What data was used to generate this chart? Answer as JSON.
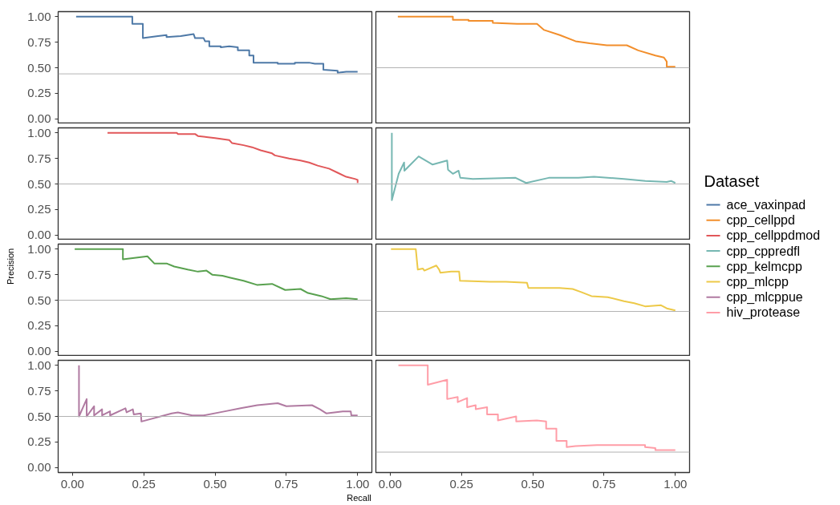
{
  "chart_data": [
    {
      "type": "line",
      "legend_title": "Dataset",
      "legend": "right",
      "tick_labels": "y",
      "xlim": [
        -0.05,
        1.05
      ],
      "ylim": [
        -0.05,
        1.05
      ],
      "yticks": [
        {
          "value": 0,
          "label": "0.00"
        },
        {
          "value": 0.25,
          "label": "0.25"
        },
        {
          "value": 0.5,
          "label": "0.50"
        },
        {
          "value": 0.75,
          "label": "0.75"
        },
        {
          "value": 1,
          "label": "1.00"
        }
      ],
      "ref_lines": [
        {
          "axis": "y",
          "value": 0.44,
          "color": "#b3b3b3"
        }
      ],
      "series": [
        {
          "name": "ace_vaxinpad",
          "color": "#4e79a7",
          "x": [
            0.013,
            0.21,
            0.21,
            0.247,
            0.247,
            0.3,
            0.33,
            0.33,
            0.38,
            0.425,
            0.43,
            0.46,
            0.465,
            0.48,
            0.48,
            0.52,
            0.52,
            0.55,
            0.58,
            0.58,
            0.62,
            0.62,
            0.635,
            0.635,
            0.72,
            0.72,
            0.78,
            0.78,
            0.83,
            0.85,
            0.88,
            0.88,
            0.93,
            0.93,
            0.96,
            1.0
          ],
          "values": [
            1,
            1,
            0.93,
            0.93,
            0.79,
            0.81,
            0.82,
            0.8,
            0.81,
            0.83,
            0.79,
            0.79,
            0.76,
            0.76,
            0.71,
            0.71,
            0.7,
            0.71,
            0.7,
            0.67,
            0.67,
            0.62,
            0.62,
            0.55,
            0.55,
            0.54,
            0.54,
            0.55,
            0.55,
            0.54,
            0.54,
            0.48,
            0.47,
            0.45,
            0.46,
            0.46
          ]
        }
      ]
    },
    {
      "type": "line",
      "legend": "right",
      "tick_labels": false,
      "xlim": [
        -0.05,
        1.05
      ],
      "ylim": [
        -0.05,
        1.05
      ],
      "ref_lines": [
        {
          "axis": "y",
          "value": 0.5,
          "color": "#b3b3b3"
        }
      ],
      "series": [
        {
          "name": "cpp_cellppd",
          "color": "#f28e2b",
          "x": [
            0.027,
            0.22,
            0.22,
            0.275,
            0.275,
            0.36,
            0.36,
            0.445,
            0.445,
            0.515,
            0.54,
            0.595,
            0.65,
            0.7,
            0.76,
            0.83,
            0.87,
            0.93,
            0.96,
            0.97,
            0.97,
            1.0
          ],
          "values": [
            1,
            1,
            0.97,
            0.97,
            0.96,
            0.96,
            0.94,
            0.93,
            0.93,
            0.93,
            0.87,
            0.82,
            0.76,
            0.74,
            0.72,
            0.72,
            0.67,
            0.62,
            0.6,
            0.56,
            0.51,
            0.51
          ]
        }
      ]
    },
    {
      "type": "line",
      "legend": "right",
      "tick_labels": "y",
      "xlim": [
        -0.05,
        1.05
      ],
      "ylim": [
        -0.05,
        1.05
      ],
      "yticks": [
        {
          "value": 0,
          "label": "0.00"
        },
        {
          "value": 0.25,
          "label": "0.25"
        },
        {
          "value": 0.5,
          "label": "0.50"
        },
        {
          "value": 0.75,
          "label": "0.75"
        },
        {
          "value": 1,
          "label": "1.00"
        }
      ],
      "ref_lines": [
        {
          "axis": "y",
          "value": 0.5,
          "color": "#b3b3b3"
        }
      ],
      "series": [
        {
          "name": "cpp_cellppdmod",
          "color": "#e15759",
          "x": [
            0.123,
            0.366,
            0.37,
            0.43,
            0.44,
            0.47,
            0.5,
            0.55,
            0.56,
            0.6,
            0.63,
            0.66,
            0.7,
            0.71,
            0.76,
            0.8,
            0.83,
            0.86,
            0.9,
            0.93,
            0.96,
            0.99,
            1.0,
            1.0
          ],
          "values": [
            1,
            1,
            0.99,
            0.99,
            0.97,
            0.96,
            0.95,
            0.93,
            0.9,
            0.88,
            0.86,
            0.83,
            0.8,
            0.78,
            0.75,
            0.73,
            0.71,
            0.68,
            0.65,
            0.61,
            0.57,
            0.55,
            0.54,
            0.51
          ]
        }
      ]
    },
    {
      "type": "line",
      "legend": "right",
      "tick_labels": false,
      "xlim": [
        -0.05,
        1.05
      ],
      "ylim": [
        -0.05,
        1.05
      ],
      "ref_lines": [
        {
          "axis": "y",
          "value": 0.5,
          "color": "#b3b3b3"
        }
      ],
      "series": [
        {
          "name": "cpp_cppredfl",
          "color": "#76b7b2",
          "x": [
            0.006,
            0.006,
            0.03,
            0.049,
            0.05,
            0.1,
            0.149,
            0.2,
            0.203,
            0.22,
            0.24,
            0.246,
            0.29,
            0.44,
            0.477,
            0.556,
            0.66,
            0.715,
            0.82,
            0.895,
            0.97,
            0.985,
            1.0
          ],
          "values": [
            1,
            0.34,
            0.6,
            0.71,
            0.63,
            0.77,
            0.69,
            0.73,
            0.64,
            0.6,
            0.63,
            0.56,
            0.55,
            0.56,
            0.51,
            0.56,
            0.56,
            0.57,
            0.55,
            0.53,
            0.52,
            0.53,
            0.51
          ]
        }
      ]
    },
    {
      "type": "line",
      "ylabel": "Precision",
      "legend": "right",
      "tick_labels": "y",
      "xlim": [
        -0.05,
        1.05
      ],
      "ylim": [
        -0.05,
        1.05
      ],
      "yticks": [
        {
          "value": 0,
          "label": "0.00"
        },
        {
          "value": 0.25,
          "label": "0.25"
        },
        {
          "value": 0.5,
          "label": "0.50"
        },
        {
          "value": 0.75,
          "label": "0.75"
        },
        {
          "value": 1,
          "label": "1.00"
        }
      ],
      "ref_lines": [
        {
          "axis": "y",
          "value": 0.5,
          "color": "#b3b3b3"
        }
      ],
      "series": [
        {
          "name": "cpp_kelmcpp",
          "color": "#59a14f",
          "x": [
            0.008,
            0.177,
            0.177,
            0.263,
            0.287,
            0.33,
            0.357,
            0.404,
            0.44,
            0.47,
            0.49,
            0.526,
            0.554,
            0.6,
            0.647,
            0.7,
            0.746,
            0.8,
            0.826,
            0.873,
            0.905,
            0.96,
            1.0
          ],
          "values": [
            1,
            1,
            0.9,
            0.93,
            0.86,
            0.86,
            0.83,
            0.8,
            0.78,
            0.79,
            0.75,
            0.74,
            0.72,
            0.69,
            0.65,
            0.66,
            0.6,
            0.61,
            0.57,
            0.54,
            0.51,
            0.52,
            0.51
          ]
        }
      ]
    },
    {
      "type": "line",
      "legend": "right",
      "tick_labels": false,
      "xlim": [
        -0.05,
        1.05
      ],
      "ylim": [
        -0.05,
        1.05
      ],
      "ref_lines": [
        {
          "axis": "y",
          "value": 0.39,
          "color": "#b3b3b3"
        }
      ],
      "series": [
        {
          "name": "cpp_mlcpp",
          "color": "#edc948",
          "x": [
            0.003,
            0.09,
            0.097,
            0.115,
            0.12,
            0.162,
            0.172,
            0.176,
            0.214,
            0.242,
            0.245,
            0.35,
            0.406,
            0.48,
            0.485,
            0.594,
            0.64,
            0.67,
            0.706,
            0.763,
            0.82,
            0.856,
            0.894,
            0.95,
            0.97,
            1.0
          ],
          "values": [
            1,
            1,
            0.8,
            0.81,
            0.79,
            0.84,
            0.8,
            0.77,
            0.78,
            0.78,
            0.69,
            0.68,
            0.68,
            0.67,
            0.62,
            0.62,
            0.61,
            0.58,
            0.54,
            0.53,
            0.49,
            0.47,
            0.44,
            0.45,
            0.42,
            0.4
          ]
        }
      ]
    },
    {
      "type": "line",
      "xlabel": "Recall",
      "legend": "right",
      "xlim": [
        -0.05,
        1.05
      ],
      "ylim": [
        -0.05,
        1.05
      ],
      "xticks": [
        {
          "value": 0,
          "label": "0.00"
        },
        {
          "value": 0.25,
          "label": "0.25"
        },
        {
          "value": 0.5,
          "label": "0.50"
        },
        {
          "value": 0.75,
          "label": "0.75"
        },
        {
          "value": 1,
          "label": "1.00"
        }
      ],
      "yticks": [
        {
          "value": 0,
          "label": "0.00"
        },
        {
          "value": 0.25,
          "label": "0.25"
        },
        {
          "value": 0.5,
          "label": "0.50"
        },
        {
          "value": 0.75,
          "label": "0.75"
        },
        {
          "value": 1,
          "label": "1.00"
        }
      ],
      "ref_lines": [
        {
          "axis": "y",
          "value": 0.5,
          "color": "#b3b3b3"
        }
      ],
      "series": [
        {
          "name": "cpp_mlcppue",
          "color": "#b07aa1",
          "x": [
            0.023,
            0.023,
            0.05,
            0.05,
            0.076,
            0.076,
            0.104,
            0.104,
            0.132,
            0.132,
            0.186,
            0.19,
            0.212,
            0.215,
            0.24,
            0.242,
            0.348,
            0.37,
            0.42,
            0.46,
            0.535,
            0.59,
            0.648,
            0.72,
            0.75,
            0.84,
            0.868,
            0.89,
            0.948,
            0.976,
            0.978,
            1.0
          ],
          "values": [
            1,
            0.5,
            0.67,
            0.5,
            0.6,
            0.51,
            0.57,
            0.51,
            0.55,
            0.51,
            0.58,
            0.54,
            0.57,
            0.52,
            0.53,
            0.45,
            0.53,
            0.54,
            0.51,
            0.51,
            0.55,
            0.58,
            0.61,
            0.63,
            0.6,
            0.61,
            0.57,
            0.53,
            0.55,
            0.55,
            0.51,
            0.51
          ]
        }
      ]
    },
    {
      "type": "line",
      "legend": "right",
      "tick_labels": "x",
      "xlim": [
        -0.05,
        1.05
      ],
      "ylim": [
        -0.05,
        1.05
      ],
      "xticks": [
        {
          "value": 0,
          "label": "0.00"
        },
        {
          "value": 0.25,
          "label": "0.25"
        },
        {
          "value": 0.5,
          "label": "0.50"
        },
        {
          "value": 0.75,
          "label": "0.75"
        },
        {
          "value": 1,
          "label": "1.00"
        }
      ],
      "ref_lines": [
        {
          "axis": "y",
          "value": 0.15,
          "color": "#b3b3b3"
        }
      ],
      "series": [
        {
          "name": "hiv_protease",
          "color": "#ff9da7",
          "x": [
            0.029,
            0.132,
            0.132,
            0.2,
            0.2,
            0.237,
            0.237,
            0.27,
            0.27,
            0.3,
            0.3,
            0.34,
            0.34,
            0.378,
            0.378,
            0.442,
            0.442,
            0.514,
            0.547,
            0.547,
            0.583,
            0.583,
            0.619,
            0.619,
            0.65,
            0.725,
            0.894,
            0.894,
            0.93,
            0.93,
            1.0
          ],
          "values": [
            1,
            1,
            0.81,
            0.86,
            0.67,
            0.69,
            0.64,
            0.68,
            0.59,
            0.61,
            0.57,
            0.59,
            0.52,
            0.52,
            0.46,
            0.5,
            0.45,
            0.46,
            0.45,
            0.38,
            0.38,
            0.26,
            0.26,
            0.2,
            0.21,
            0.22,
            0.22,
            0.2,
            0.19,
            0.17,
            0.17
          ]
        }
      ]
    }
  ]
}
